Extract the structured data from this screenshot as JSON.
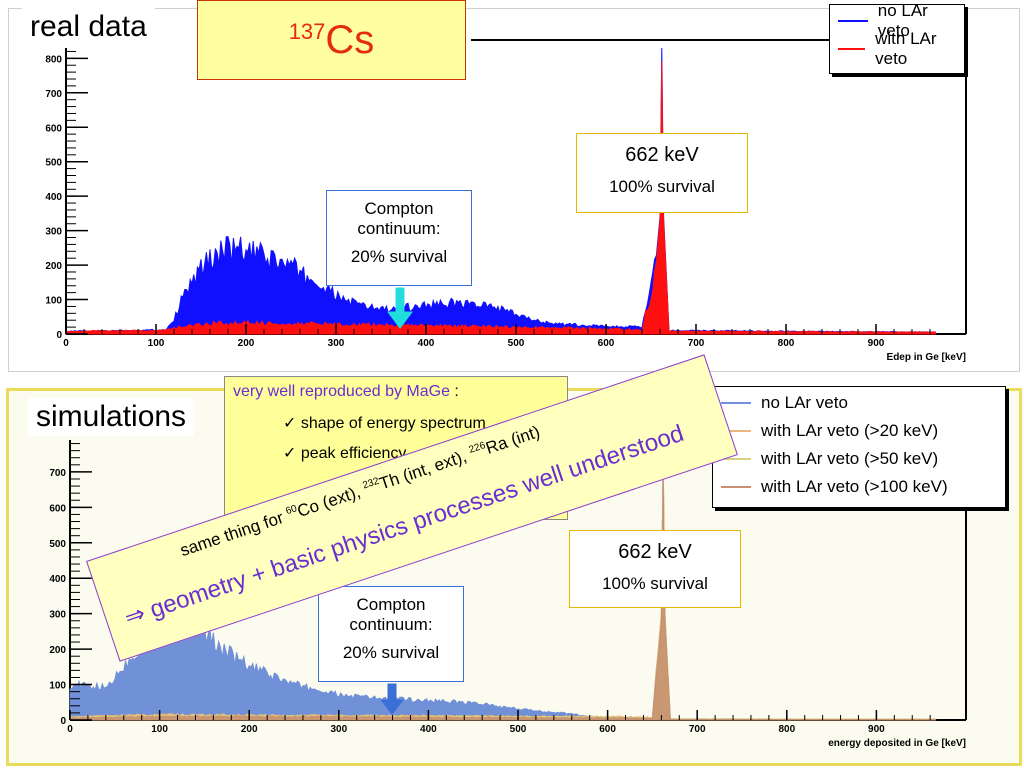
{
  "labels": {
    "real_data": "real data",
    "simulations": "simulations",
    "isotope_mass": "137",
    "isotope_symbol": "Cs"
  },
  "note": {
    "header": "very well reproduced by MaGe",
    "header_colon": " :",
    "items": [
      "✓ shape of energy spectrum",
      "✓ peak efficiency"
    ]
  },
  "banner": {
    "line1_parts": [
      "same thing for ",
      "60",
      "Co (ext), ",
      "232",
      "Th (int, ext), ",
      "226",
      "Ra (int)"
    ],
    "line2": "⇒ geometry + basic physics processes well understood"
  },
  "colors": {
    "no_veto_real": "#1010ff",
    "with_veto_real": "#ff1010",
    "no_veto_sim": "#7090d8",
    "sim_20": "#e8b878",
    "sim_50": "#d8d07c",
    "sim_100": "#c89070",
    "title_red": "#e52b10",
    "purple": "#6a2fd0"
  },
  "chart_data": [
    {
      "type": "area",
      "xlabel": "Edep in Ge [keV]",
      "xlim": [
        0,
        1000
      ],
      "ylim": [
        0,
        830
      ],
      "xticks": [
        0,
        100,
        200,
        300,
        400,
        500,
        600,
        700,
        800,
        900
      ],
      "yticks": [
        0,
        100,
        200,
        300,
        400,
        500,
        600,
        700,
        800
      ],
      "legend": [
        "no LAr veto",
        "with LAr veto"
      ],
      "series": [
        {
          "name": "no LAr veto",
          "x": [
            0,
            110,
            120,
            130,
            150,
            170,
            190,
            210,
            230,
            250,
            270,
            300,
            330,
            360,
            400,
            440,
            480,
            510,
            550,
            600,
            640,
            655,
            660,
            662,
            664,
            670,
            1000
          ],
          "y": [
            8,
            12,
            40,
            110,
            190,
            240,
            245,
            230,
            215,
            195,
            160,
            110,
            80,
            70,
            85,
            90,
            75,
            45,
            28,
            22,
            20,
            200,
            340,
            830,
            340,
            10,
            5
          ]
        },
        {
          "name": "with LAr veto",
          "x": [
            0,
            110,
            130,
            160,
            200,
            250,
            300,
            350,
            400,
            450,
            500,
            550,
            600,
            640,
            655,
            660,
            662,
            664,
            670,
            1000
          ],
          "y": [
            8,
            10,
            22,
            30,
            32,
            30,
            28,
            26,
            24,
            22,
            20,
            18,
            15,
            12,
            180,
            330,
            790,
            330,
            8,
            5
          ]
        }
      ],
      "annotations": [
        {
          "text": "662 keV",
          "sub": "100% survival"
        },
        {
          "text": "Compton continuum:",
          "sub": "20% survival"
        }
      ]
    },
    {
      "type": "area",
      "xlabel": "energy deposited in Ge [keV]",
      "xlim": [
        0,
        1000
      ],
      "ylim": [
        0,
        790
      ],
      "xticks": [
        0,
        100,
        200,
        300,
        400,
        500,
        600,
        700,
        800,
        900
      ],
      "yticks": [
        0,
        100,
        200,
        300,
        400,
        500,
        600,
        700
      ],
      "legend": [
        "no LAr veto",
        "with LAr veto (>20 keV)",
        "with LAr veto (>50 keV)",
        "with LAr veto (>100 keV)"
      ],
      "series": [
        {
          "name": "no LAr veto",
          "x": [
            0,
            40,
            70,
            100,
            120,
            140,
            170,
            200,
            250,
            300,
            350,
            400,
            450,
            500,
            550,
            580,
            600,
            650,
            660,
            662,
            664,
            670,
            1000
          ],
          "y": [
            100,
            90,
            180,
            260,
            295,
            270,
            200,
            150,
            100,
            70,
            60,
            55,
            48,
            30,
            20,
            10,
            6,
            4,
            300,
            760,
            300,
            3,
            2
          ]
        },
        {
          "name": "with LAr veto (>20 keV)",
          "x": [
            0,
            100,
            200,
            300,
            400,
            500,
            600,
            650,
            660,
            662,
            664,
            670,
            1000
          ],
          "y": [
            10,
            15,
            14,
            13,
            12,
            11,
            10,
            8,
            300,
            740,
            300,
            3,
            2
          ]
        },
        {
          "name": "with LAr veto (>50 keV)",
          "x": [
            0,
            100,
            200,
            300,
            400,
            500,
            600,
            650,
            660,
            662,
            664,
            670,
            1000
          ],
          "y": [
            8,
            12,
            12,
            11,
            10,
            9,
            8,
            6,
            290,
            720,
            290,
            3,
            2
          ]
        },
        {
          "name": "with LAr veto (>100 keV)",
          "x": [
            0,
            100,
            200,
            300,
            400,
            500,
            600,
            650,
            660,
            662,
            664,
            670,
            1000
          ],
          "y": [
            6,
            10,
            10,
            9,
            8,
            7,
            6,
            5,
            280,
            700,
            280,
            2,
            1
          ]
        }
      ],
      "annotations": [
        {
          "text": "662 keV",
          "sub": "100% survival"
        },
        {
          "text": "Compton continuum:",
          "sub": "20% survival"
        }
      ]
    }
  ]
}
